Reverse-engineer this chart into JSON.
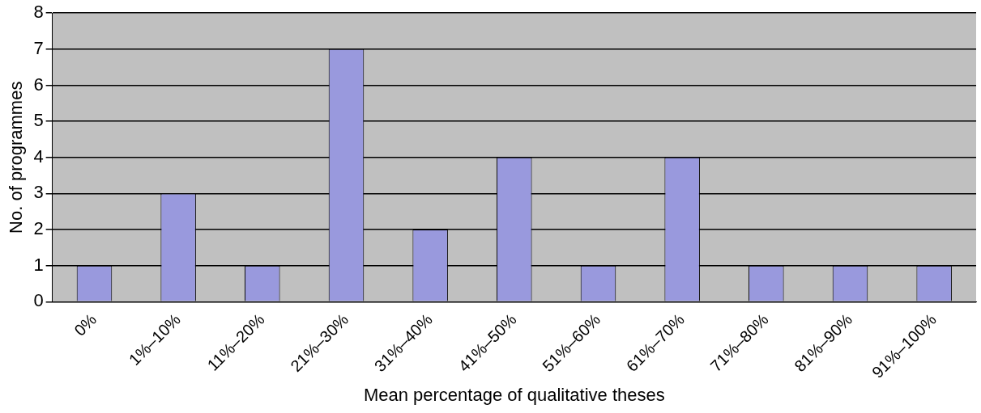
{
  "chart_data": {
    "type": "bar",
    "xlabel": "Mean percentage of qualitative theses",
    "ylabel": "No. of programmes",
    "categories": [
      "0%",
      "1%–10%",
      "11%–20%",
      "21%–30%",
      "31%–40%",
      "41%–50%",
      "51%–60%",
      "61%–70%",
      "71%–80%",
      "81%–90%",
      "91%–100%"
    ],
    "values": [
      1,
      3,
      1,
      7,
      2,
      4,
      1,
      4,
      1,
      1,
      1
    ],
    "color": "#9999dd",
    "ylim": [
      0,
      8
    ],
    "yticks": [
      0,
      1,
      2,
      3,
      4,
      5,
      6,
      7,
      8
    ],
    "grid": "y",
    "legend": false
  }
}
